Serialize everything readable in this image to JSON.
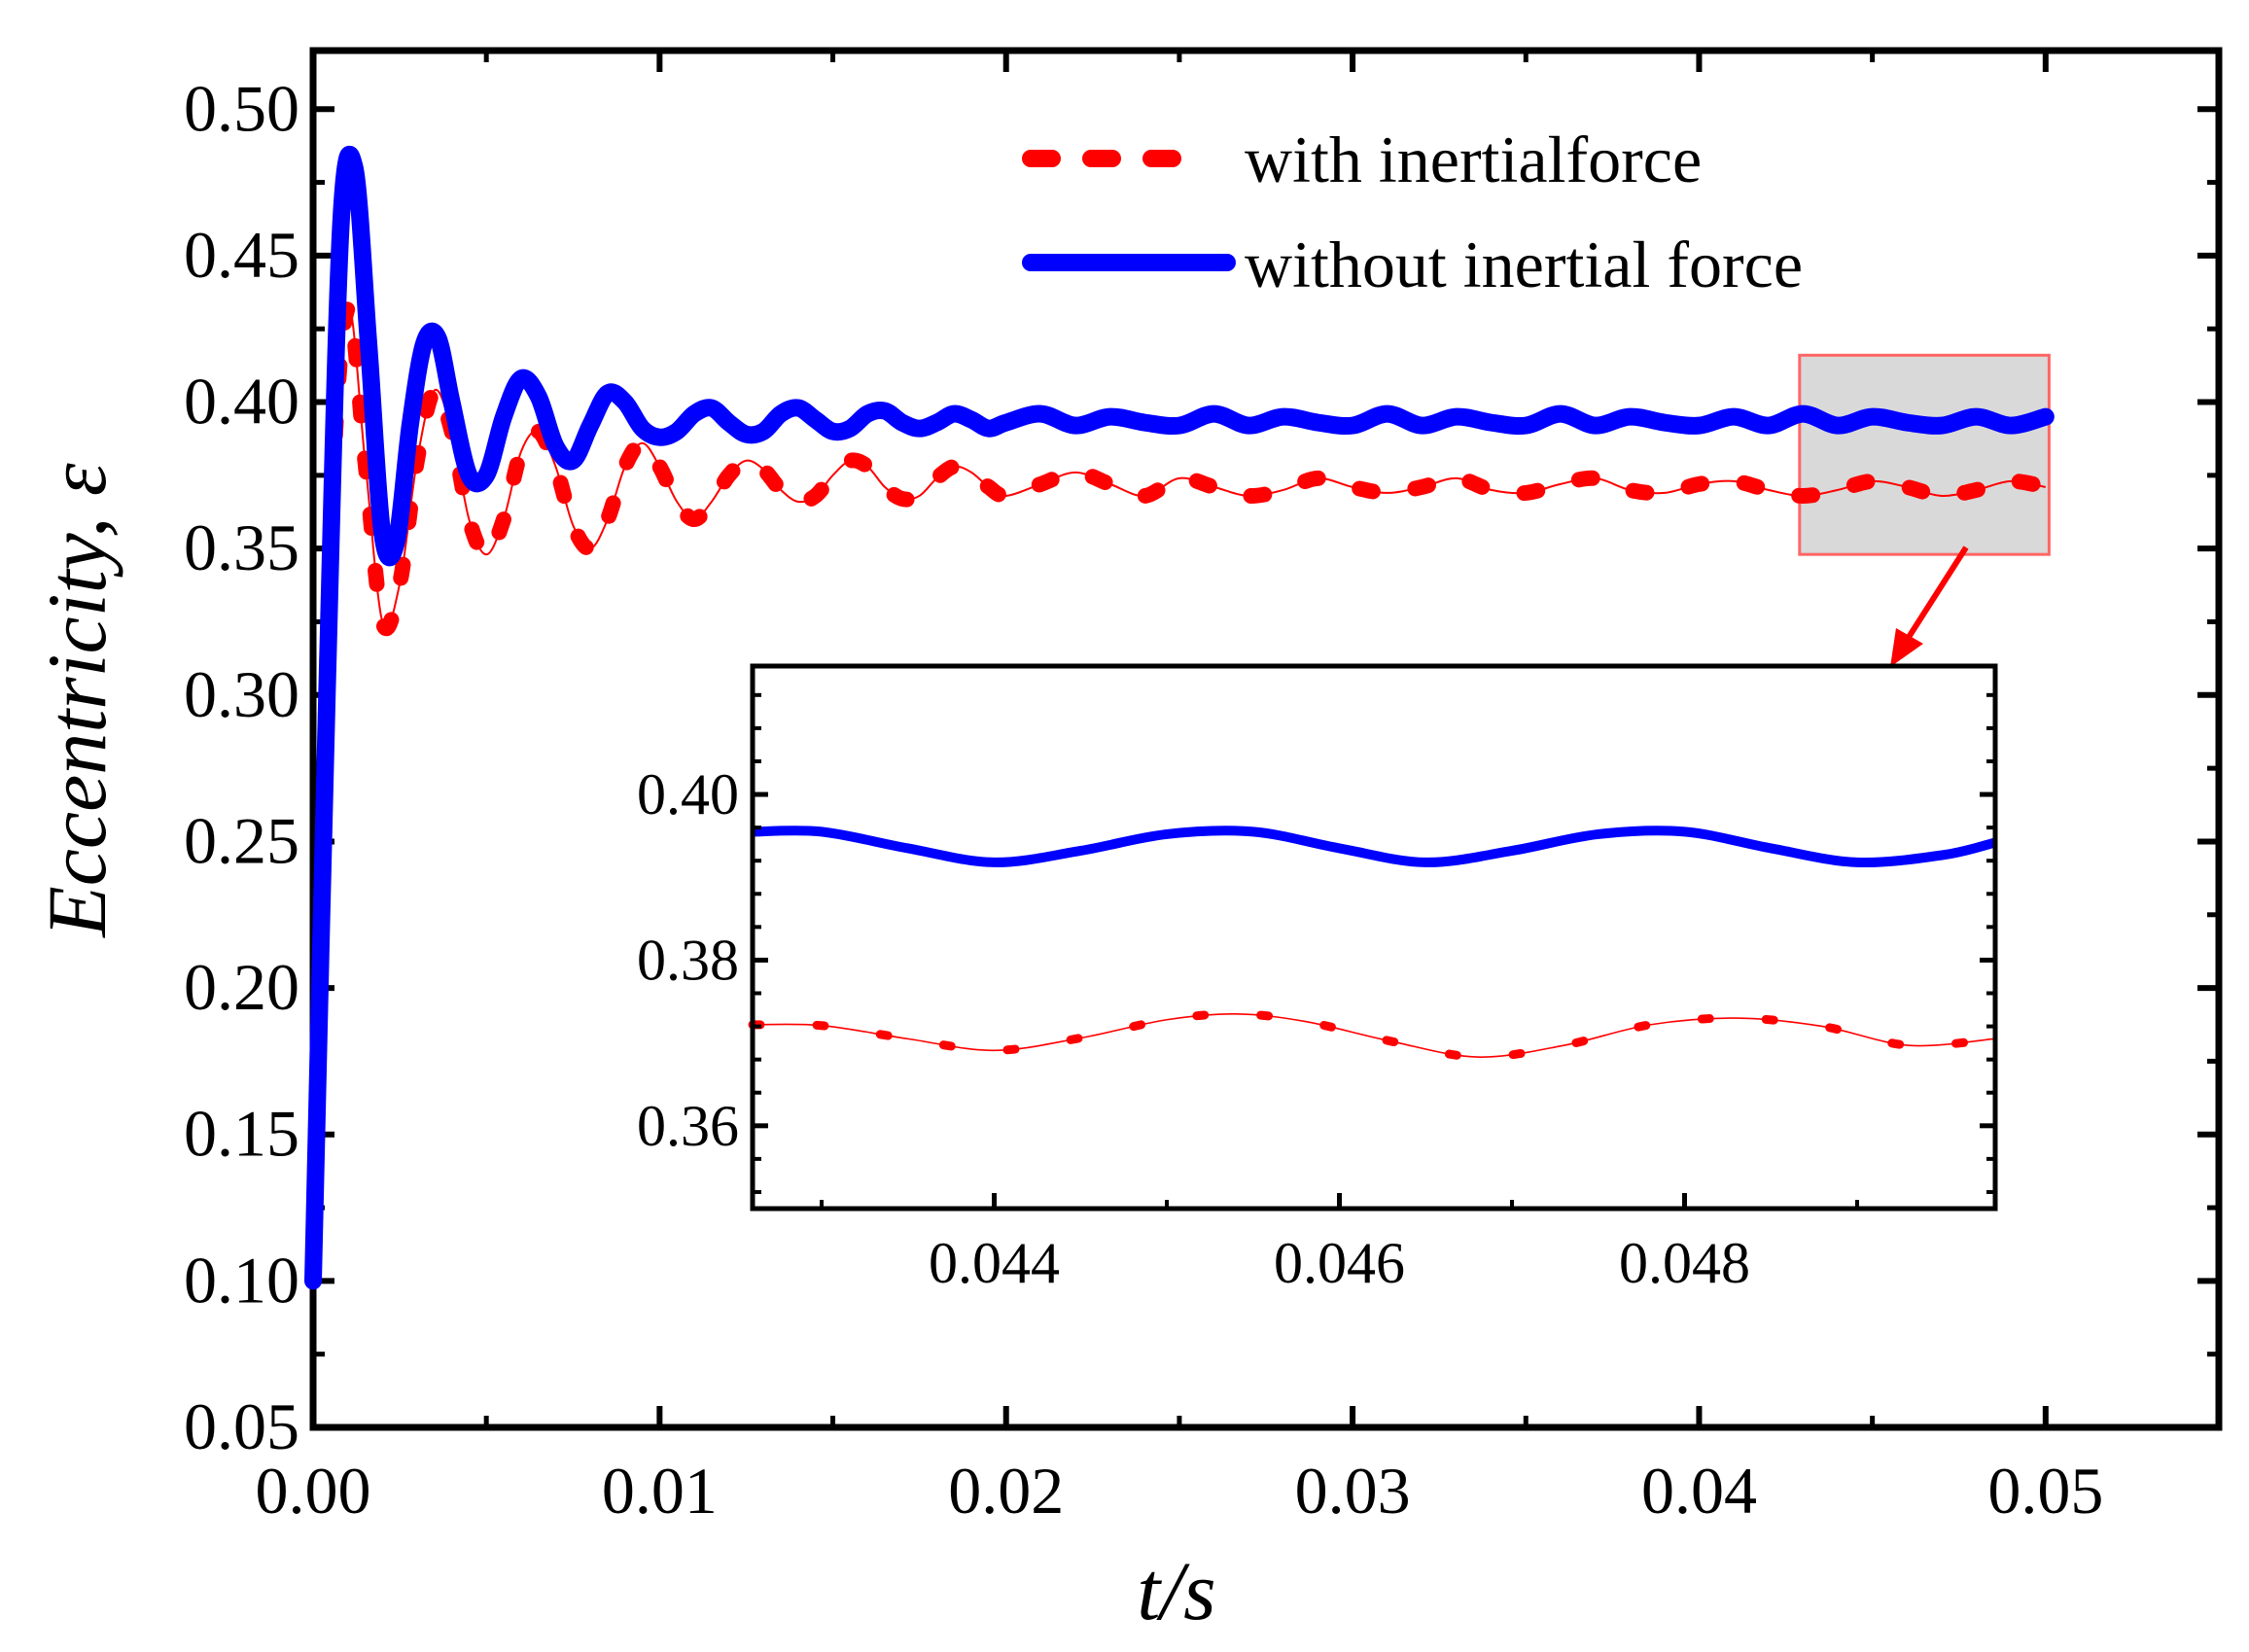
{
  "chart_data": [
    {
      "type": "line",
      "xlabel": "t/s",
      "ylabel": "Eccentricity, ε",
      "xlim": [
        0.0,
        0.055
      ],
      "ylim": [
        0.05,
        0.52
      ],
      "xticks": [
        "0.00",
        "0.01",
        "0.02",
        "0.03",
        "0.04",
        "0.05"
      ],
      "yticks": [
        "0.05",
        "0.10",
        "0.15",
        "0.20",
        "0.25",
        "0.30",
        "0.35",
        "0.40",
        "0.45",
        "0.50"
      ],
      "legend": {
        "position": "top-right",
        "entries": [
          "with inertialforce",
          "without inertial force"
        ]
      },
      "series": [
        {
          "name": "with inertialforce",
          "color": "#ff0000",
          "style": "dotted",
          "x": [
            0.0,
            0.0005,
            0.001,
            0.0015,
            0.002,
            0.0025,
            0.003,
            0.0035,
            0.004,
            0.0045,
            0.005,
            0.0055,
            0.006,
            0.0065,
            0.007,
            0.0075,
            0.008,
            0.0085,
            0.009,
            0.0095,
            0.01,
            0.0105,
            0.011,
            0.0115,
            0.012,
            0.0125,
            0.013,
            0.0135,
            0.014,
            0.0145,
            0.015,
            0.0155,
            0.016,
            0.0165,
            0.017,
            0.0175,
            0.018,
            0.0185,
            0.019,
            0.0195,
            0.02,
            0.021,
            0.022,
            0.023,
            0.024,
            0.025,
            0.026,
            0.027,
            0.028,
            0.029,
            0.03,
            0.031,
            0.032,
            0.033,
            0.034,
            0.035,
            0.036,
            0.037,
            0.038,
            0.039,
            0.04,
            0.041,
            0.042,
            0.043,
            0.044,
            0.045,
            0.046,
            0.047,
            0.048,
            0.049,
            0.05
          ],
          "y": [
            0.1,
            0.35,
            0.432,
            0.38,
            0.325,
            0.338,
            0.38,
            0.404,
            0.39,
            0.36,
            0.348,
            0.36,
            0.383,
            0.39,
            0.378,
            0.358,
            0.35,
            0.36,
            0.378,
            0.386,
            0.378,
            0.366,
            0.36,
            0.366,
            0.375,
            0.38,
            0.377,
            0.37,
            0.366,
            0.368,
            0.375,
            0.38,
            0.378,
            0.371,
            0.367,
            0.368,
            0.374,
            0.378,
            0.376,
            0.371,
            0.368,
            0.372,
            0.376,
            0.372,
            0.368,
            0.374,
            0.371,
            0.368,
            0.37,
            0.374,
            0.371,
            0.369,
            0.371,
            0.374,
            0.37,
            0.369,
            0.372,
            0.374,
            0.37,
            0.369,
            0.372,
            0.373,
            0.37,
            0.368,
            0.37,
            0.373,
            0.371,
            0.368,
            0.37,
            0.373,
            0.371
          ]
        },
        {
          "name": "without inertial force",
          "color": "#0000ff",
          "style": "solid",
          "x": [
            0.0,
            0.0004,
            0.0008,
            0.0012,
            0.0016,
            0.002,
            0.0024,
            0.0028,
            0.0032,
            0.0036,
            0.004,
            0.0045,
            0.005,
            0.0055,
            0.006,
            0.0065,
            0.007,
            0.0075,
            0.008,
            0.0085,
            0.009,
            0.0095,
            0.01,
            0.0105,
            0.011,
            0.0115,
            0.012,
            0.0125,
            0.013,
            0.0135,
            0.014,
            0.0145,
            0.015,
            0.0155,
            0.016,
            0.0165,
            0.017,
            0.0175,
            0.018,
            0.0185,
            0.019,
            0.0195,
            0.02,
            0.021,
            0.022,
            0.023,
            0.024,
            0.025,
            0.026,
            0.027,
            0.028,
            0.029,
            0.03,
            0.031,
            0.032,
            0.033,
            0.034,
            0.035,
            0.036,
            0.037,
            0.038,
            0.039,
            0.04,
            0.041,
            0.042,
            0.043,
            0.044,
            0.045,
            0.046,
            0.047,
            0.048,
            0.049,
            0.05
          ],
          "y": [
            0.1,
            0.3,
            0.46,
            0.48,
            0.42,
            0.355,
            0.352,
            0.392,
            0.42,
            0.422,
            0.4,
            0.375,
            0.375,
            0.395,
            0.408,
            0.402,
            0.385,
            0.38,
            0.392,
            0.403,
            0.4,
            0.391,
            0.388,
            0.39,
            0.396,
            0.398,
            0.393,
            0.389,
            0.39,
            0.396,
            0.398,
            0.394,
            0.39,
            0.391,
            0.396,
            0.397,
            0.393,
            0.391,
            0.393,
            0.396,
            0.394,
            0.391,
            0.393,
            0.396,
            0.392,
            0.395,
            0.393,
            0.392,
            0.396,
            0.392,
            0.395,
            0.393,
            0.392,
            0.396,
            0.392,
            0.395,
            0.393,
            0.392,
            0.396,
            0.392,
            0.395,
            0.393,
            0.392,
            0.395,
            0.392,
            0.396,
            0.392,
            0.395,
            0.393,
            0.392,
            0.395,
            0.392,
            0.395
          ]
        }
      ]
    },
    {
      "type": "line",
      "title": "inset",
      "xlim": [
        0.0426,
        0.0498
      ],
      "ylim": [
        0.35,
        0.4155
      ],
      "xticks": [
        "0.044",
        "0.046",
        "0.048"
      ],
      "yticks": [
        "0.36",
        "0.38",
        "0.40"
      ],
      "series": [
        {
          "name": "with inertialforce",
          "color": "#ff0000",
          "style": "dotted",
          "x": [
            0.0426,
            0.043,
            0.0435,
            0.044,
            0.0445,
            0.045,
            0.0454,
            0.0458,
            0.0463,
            0.0468,
            0.0473,
            0.0478,
            0.0483,
            0.0488,
            0.0493,
            0.0498
          ],
          "y": [
            0.3722,
            0.3721,
            0.3705,
            0.3691,
            0.3706,
            0.3728,
            0.3735,
            0.3726,
            0.3702,
            0.3683,
            0.3697,
            0.3722,
            0.373,
            0.372,
            0.3697,
            0.3705
          ]
        },
        {
          "name": "without inertial force",
          "color": "#0000ff",
          "style": "solid",
          "x": [
            0.0426,
            0.043,
            0.0435,
            0.044,
            0.0445,
            0.045,
            0.0455,
            0.046,
            0.0465,
            0.047,
            0.0475,
            0.048,
            0.0485,
            0.049,
            0.0495,
            0.0498
          ],
          "y": [
            0.3955,
            0.3955,
            0.3935,
            0.3918,
            0.3932,
            0.3952,
            0.3955,
            0.3935,
            0.3918,
            0.3932,
            0.3952,
            0.3955,
            0.3935,
            0.3918,
            0.3927,
            0.3942
          ]
        }
      ]
    }
  ]
}
